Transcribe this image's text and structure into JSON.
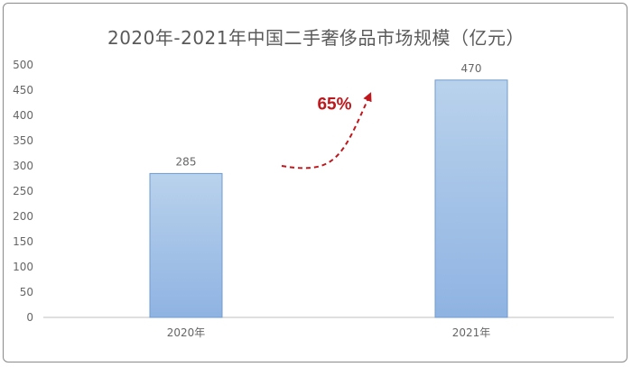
{
  "chart_data": {
    "type": "bar",
    "title": "2020年-2021年中国二手奢侈品市场规模（亿元）",
    "categories": [
      "2020年",
      "2021年"
    ],
    "values": [
      285,
      470
    ],
    "data_labels": [
      "285",
      "470"
    ],
    "ylim": [
      0,
      500
    ],
    "y_ticks": [
      "0",
      "50",
      "100",
      "150",
      "200",
      "250",
      "300",
      "350",
      "400",
      "450",
      "500"
    ],
    "xlabel": "",
    "ylabel": "",
    "grid": false,
    "annotation": "65%",
    "colors": {
      "bar_top": "#b9d2ec",
      "bar_bottom": "#8fb3e2",
      "bar_border": "#6f9bd0",
      "annotation": "#c0171d"
    }
  }
}
